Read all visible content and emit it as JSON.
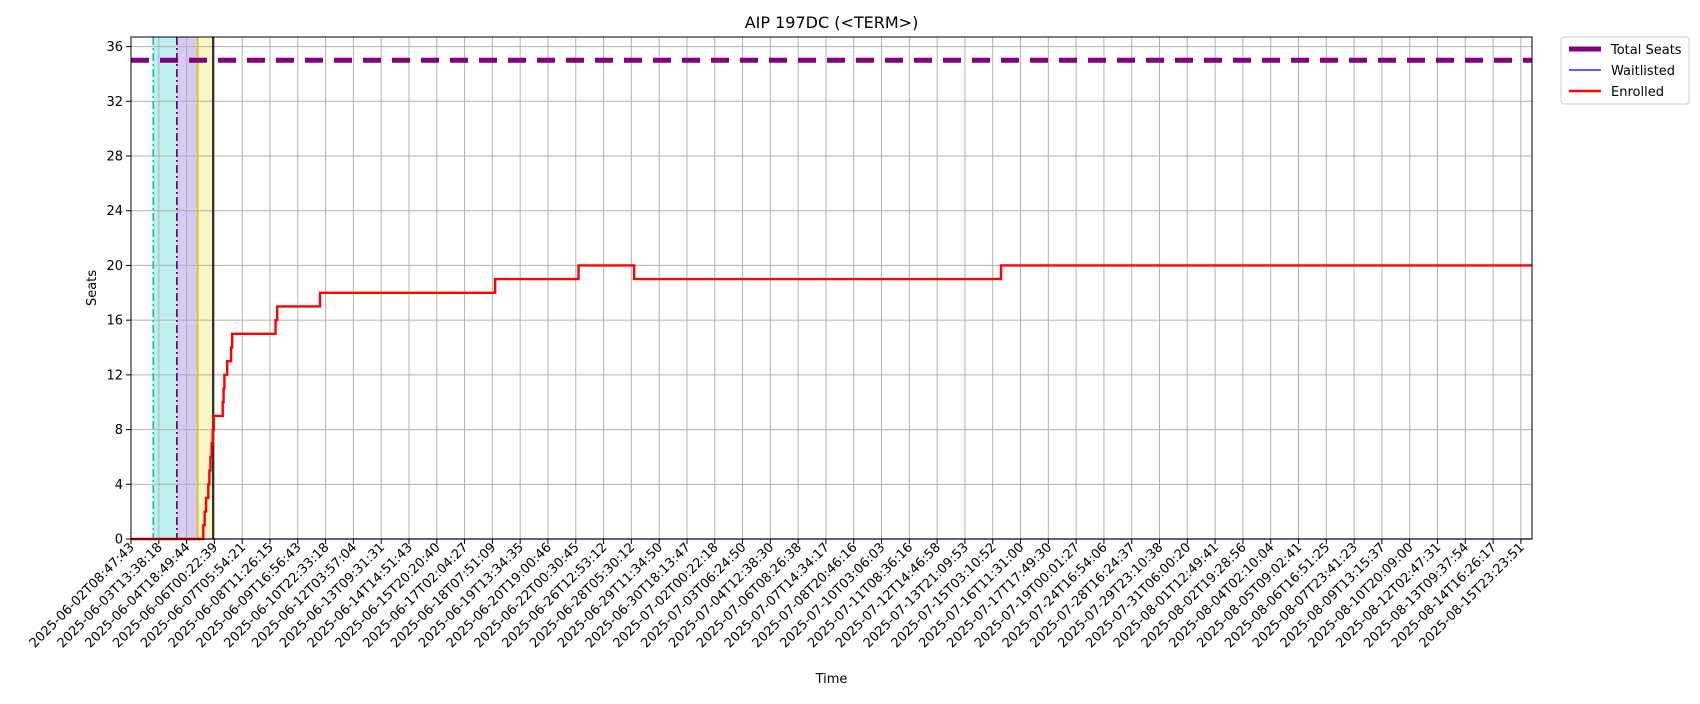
{
  "chart_data": {
    "type": "line",
    "title": "AIP 197DC (<TERM>)",
    "xlabel": "Time",
    "ylabel": "Seats",
    "ylim": [
      0,
      36.7
    ],
    "yticks": [
      0,
      4,
      8,
      12,
      16,
      20,
      24,
      28,
      32,
      36
    ],
    "grid": true,
    "legend_position": "outside-top-right",
    "xticks": [
      "2025-06-02T08:47:43",
      "2025-06-03T13:38:18",
      "2025-06-04T18:49:44",
      "2025-06-06T00:22:39",
      "2025-06-07T05:54:21",
      "2025-06-08T11:26:15",
      "2025-06-09T16:56:43",
      "2025-06-10T22:33:18",
      "2025-06-12T03:57:04",
      "2025-06-13T09:31:31",
      "2025-06-14T14:51:43",
      "2025-06-15T20:20:40",
      "2025-06-17T02:04:27",
      "2025-06-18T07:51:09",
      "2025-06-19T13:34:35",
      "2025-06-20T19:00:46",
      "2025-06-22T00:30:45",
      "2025-06-26T12:53:12",
      "2025-06-28T05:30:12",
      "2025-06-29T11:34:50",
      "2025-06-30T18:13:47",
      "2025-07-02T00:22:18",
      "2025-07-03T06:24:50",
      "2025-07-04T12:38:30",
      "2025-07-06T08:26:38",
      "2025-07-07T14:34:17",
      "2025-07-08T20:46:16",
      "2025-07-10T03:06:03",
      "2025-07-11T08:36:16",
      "2025-07-12T14:46:58",
      "2025-07-13T21:09:53",
      "2025-07-15T03:10:52",
      "2025-07-16T11:31:00",
      "2025-07-17T17:49:30",
      "2025-07-19T00:01:27",
      "2025-07-24T16:54:06",
      "2025-07-28T16:24:37",
      "2025-07-29T23:10:38",
      "2025-07-31T06:00:20",
      "2025-08-01T12:49:41",
      "2025-08-02T19:28:56",
      "2025-08-04T02:10:04",
      "2025-08-05T09:02:41",
      "2025-08-06T16:51:25",
      "2025-08-07T23:41:23",
      "2025-08-09T13:15:37",
      "2025-08-10T20:09:00",
      "2025-08-12T02:47:31",
      "2025-08-13T09:37:54",
      "2025-08-14T16:26:17",
      "2025-08-15T23:23:51"
    ],
    "series": [
      {
        "name": "Total Seats",
        "color": "#800080",
        "style": "dashed",
        "points": [
          [
            0,
            35
          ],
          [
            50.4,
            35
          ]
        ]
      },
      {
        "name": "Waitlisted",
        "color": "#0000ff",
        "style": "solid",
        "points": [
          [
            0,
            0
          ],
          [
            50.4,
            0
          ]
        ]
      },
      {
        "name": "Enrolled",
        "color": "#ff0000",
        "style": "step",
        "points": [
          [
            0,
            0
          ],
          [
            2.6,
            0
          ],
          [
            2.6,
            1
          ],
          [
            2.65,
            1
          ],
          [
            2.65,
            2
          ],
          [
            2.7,
            2
          ],
          [
            2.7,
            3
          ],
          [
            2.78,
            3
          ],
          [
            2.78,
            4
          ],
          [
            2.82,
            4
          ],
          [
            2.82,
            5
          ],
          [
            2.86,
            5
          ],
          [
            2.86,
            6
          ],
          [
            2.9,
            6
          ],
          [
            2.9,
            7
          ],
          [
            2.94,
            7
          ],
          [
            2.94,
            8
          ],
          [
            2.98,
            8
          ],
          [
            2.98,
            9
          ],
          [
            3.3,
            9
          ],
          [
            3.3,
            10
          ],
          [
            3.33,
            10
          ],
          [
            3.33,
            11
          ],
          [
            3.36,
            11
          ],
          [
            3.36,
            12
          ],
          [
            3.46,
            12
          ],
          [
            3.46,
            13
          ],
          [
            3.6,
            13
          ],
          [
            3.6,
            14
          ],
          [
            3.64,
            14
          ],
          [
            3.64,
            15
          ],
          [
            5.2,
            15
          ],
          [
            5.2,
            16
          ],
          [
            5.26,
            16
          ],
          [
            5.26,
            17
          ],
          [
            6.8,
            17
          ],
          [
            6.8,
            18
          ],
          [
            13.1,
            18
          ],
          [
            13.1,
            19
          ],
          [
            16.1,
            19
          ],
          [
            16.1,
            20
          ],
          [
            18.1,
            20
          ],
          [
            18.1,
            19
          ],
          [
            31.3,
            19
          ],
          [
            31.3,
            20
          ],
          [
            50.4,
            20
          ]
        ]
      }
    ],
    "markers": [
      {
        "x": 0.8,
        "color": "#00bfbf",
        "style": "dashdot"
      },
      {
        "x": 1.65,
        "color": "#4b0082",
        "style": "dashdot"
      },
      {
        "x": 2.4,
        "color": "#d8c800",
        "style": "solid"
      },
      {
        "x": 2.95,
        "color": "#000000",
        "style": "solid"
      }
    ],
    "shaded_regions": [
      {
        "from": 0.8,
        "to": 1.65,
        "color": "#bff0f0"
      },
      {
        "from": 1.65,
        "to": 2.4,
        "color": "#d8c8f4"
      },
      {
        "from": 2.4,
        "to": 2.95,
        "color": "#fbf6c6"
      }
    ]
  }
}
